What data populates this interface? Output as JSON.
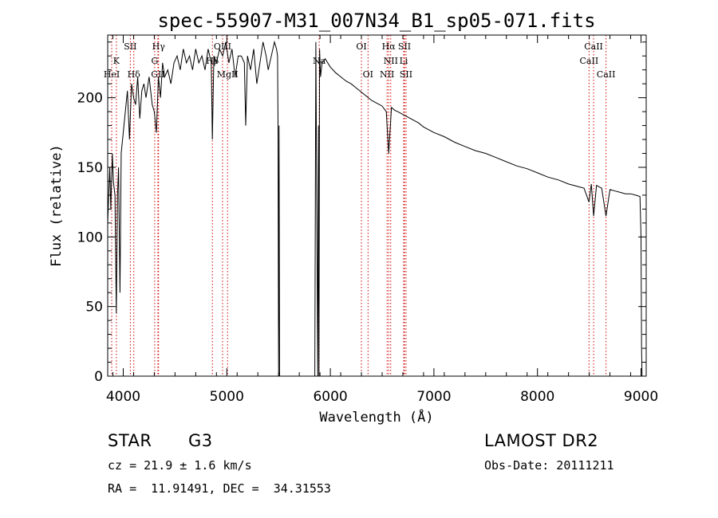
{
  "chart_data": {
    "type": "line",
    "title": "spec-55907-M31_007N34_B1_sp05-071.fits",
    "xlabel": "Wavelength (Å)",
    "ylabel": "Flux (relative)",
    "xlim": [
      3850,
      9050
    ],
    "ylim": [
      0,
      245
    ],
    "x_ticks": [
      4000,
      5000,
      6000,
      7000,
      8000,
      9000
    ],
    "y_ticks": [
      0,
      50,
      100,
      150,
      200
    ],
    "grid": false,
    "series": [
      {
        "x": [
          3850,
          3870,
          3880,
          3895,
          3905,
          3920,
          3933,
          3945,
          3955,
          3969,
          3980,
          4000,
          4020,
          4040,
          4060,
          4080,
          4100,
          4120,
          4140,
          4160,
          4180,
          4200,
          4220,
          4250,
          4280,
          4300,
          4320,
          4340,
          4360,
          4380,
          4400,
          4430,
          4460,
          4490,
          4520,
          4550,
          4580,
          4610,
          4640,
          4670,
          4700,
          4730,
          4760,
          4790,
          4820,
          4850,
          4861,
          4875,
          4900,
          4930,
          4960,
          4990,
          5020,
          5050,
          5080,
          5110,
          5140,
          5170,
          5183,
          5200,
          5230,
          5260,
          5290,
          5320,
          5350,
          5380,
          5400,
          5430,
          5460,
          5480,
          5490,
          5495,
          5500,
          5505,
          5510,
          5850,
          5860,
          5870,
          5878,
          5885,
          5890,
          5896,
          5905,
          5920,
          5950,
          6000,
          6050,
          6100,
          6150,
          6200,
          6250,
          6300,
          6350,
          6400,
          6450,
          6500,
          6540,
          6563,
          6590,
          6620,
          6650,
          6700,
          6750,
          6800,
          6850,
          6900,
          6950,
          7000,
          7100,
          7200,
          7300,
          7400,
          7500,
          7600,
          7700,
          7800,
          7900,
          8000,
          8100,
          8200,
          8300,
          8400,
          8450,
          8498,
          8520,
          8542,
          8570,
          8620,
          8662,
          8700,
          8750,
          8800,
          8850,
          8900,
          8950,
          8990,
          9000,
          9005,
          9010
        ],
        "y": [
          110,
          150,
          120,
          160,
          140,
          130,
          45,
          130,
          150,
          60,
          160,
          175,
          190,
          205,
          170,
          210,
          200,
          195,
          215,
          185,
          205,
          210,
          200,
          215,
          195,
          190,
          175,
          215,
          200,
          225,
          215,
          220,
          210,
          225,
          230,
          220,
          235,
          225,
          230,
          220,
          235,
          225,
          230,
          220,
          235,
          225,
          170,
          230,
          225,
          235,
          230,
          240,
          225,
          235,
          215,
          230,
          230,
          225,
          180,
          230,
          220,
          235,
          210,
          225,
          240,
          230,
          220,
          230,
          240,
          235,
          230,
          180,
          0,
          180,
          0,
          0,
          240,
          110,
          0,
          180,
          0,
          235,
          215,
          225,
          228,
          222,
          218,
          215,
          212,
          210,
          207,
          204,
          201,
          198,
          196,
          194,
          190,
          160,
          193,
          191,
          190,
          188,
          186,
          184,
          182,
          179,
          177,
          175,
          172,
          168,
          165,
          162,
          160,
          157,
          154,
          151,
          149,
          146,
          143,
          141,
          138,
          136,
          135,
          125,
          138,
          115,
          137,
          135,
          115,
          134,
          133,
          132,
          131,
          131,
          130,
          129,
          100,
          20,
          0
        ]
      }
    ],
    "line_labels": [
      {
        "name": "K",
        "x": 3934,
        "row": 1
      },
      {
        "name": "HeI",
        "x": 3889,
        "row": 2
      },
      {
        "name": "SII",
        "x": 4069,
        "row": 0
      },
      {
        "name": "Hδ",
        "x": 4102,
        "row": 2
      },
      {
        "name": "Hγ",
        "x": 4341,
        "row": 0
      },
      {
        "name": "G",
        "x": 4304,
        "row": 1
      },
      {
        "name": "GII",
        "x": 4335,
        "row": 2
      },
      {
        "name": "OIII",
        "x": 4959,
        "row": 0
      },
      {
        "name": "Hβ",
        "x": 4861,
        "row": 1
      },
      {
        "name": "MgII",
        "x": 5007,
        "row": 2
      },
      {
        "name": "Na",
        "x": 5892,
        "row": 1
      },
      {
        "name": "OI",
        "x": 6300,
        "row": 0
      },
      {
        "name": "OI",
        "x": 6364,
        "row": 2
      },
      {
        "name": "Hα",
        "x": 6563,
        "row": 0
      },
      {
        "name": "SII",
        "x": 6716,
        "row": 0
      },
      {
        "name": "NII",
        "x": 6583,
        "row": 1
      },
      {
        "name": "Li",
        "x": 6708,
        "row": 1
      },
      {
        "name": "NII",
        "x": 6548,
        "row": 2
      },
      {
        "name": "SII",
        "x": 6731,
        "row": 2
      },
      {
        "name": "CaII",
        "x": 8542,
        "row": 0
      },
      {
        "name": "CaII",
        "x": 8498,
        "row": 1
      },
      {
        "name": "CaII",
        "x": 8662,
        "row": 2
      }
    ]
  },
  "info": {
    "object_class": "STAR",
    "subclass": "G3",
    "survey": "LAMOST DR2",
    "cz": "cz = 21.9 ± 1.6 km/s",
    "obs_date": "Obs-Date: 20111211",
    "coords": "RA =  11.91491, DEC =  34.31553"
  },
  "colors": {
    "line_marker": "#d00000",
    "spectrum": "#000000"
  }
}
